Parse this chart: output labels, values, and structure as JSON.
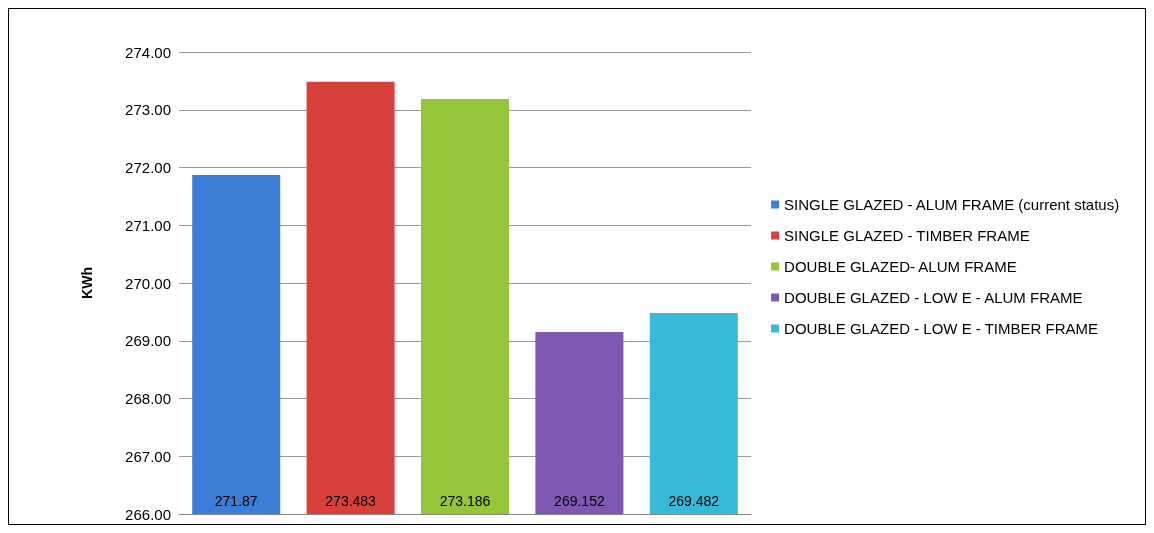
{
  "chart_data": {
    "type": "bar",
    "ylabel": "KWh",
    "categories": [
      null
    ],
    "series": [
      {
        "name": "SINGLE GLAZED - ALUM FRAME (current status)",
        "color": "#3c7dd8",
        "values": [
          271.87
        ]
      },
      {
        "name": "SINGLE GLAZED - TIMBER FRAME",
        "color": "#d8403c",
        "values": [
          273.483
        ]
      },
      {
        "name": "DOUBLE GLAZED- ALUM FRAME",
        "color": "#95c63a",
        "values": [
          273.186
        ]
      },
      {
        "name": "DOUBLE GLAZED - LOW E - ALUM FRAME",
        "color": "#7f58b1",
        "values": [
          269.152
        ]
      },
      {
        "name": "DOUBLE GLAZED - LOW E - TIMBER FRAME",
        "color": "#38b9d7",
        "values": [
          269.482
        ]
      }
    ],
    "ylim": [
      266,
      274
    ],
    "yticks": [
      {
        "value": 266,
        "label": "266.00"
      },
      {
        "value": 267,
        "label": "267.00"
      },
      {
        "value": 268,
        "label": "268.00"
      },
      {
        "value": 269,
        "label": "269.00"
      },
      {
        "value": 270,
        "label": "270.00"
      },
      {
        "value": 271,
        "label": "271.00"
      },
      {
        "value": 272,
        "label": "272.00"
      },
      {
        "value": 273,
        "label": "273.00"
      },
      {
        "value": 274,
        "label": "274.00"
      }
    ],
    "grid": "y",
    "legend": "right",
    "data_labels": true,
    "tick_labels": "y"
  }
}
